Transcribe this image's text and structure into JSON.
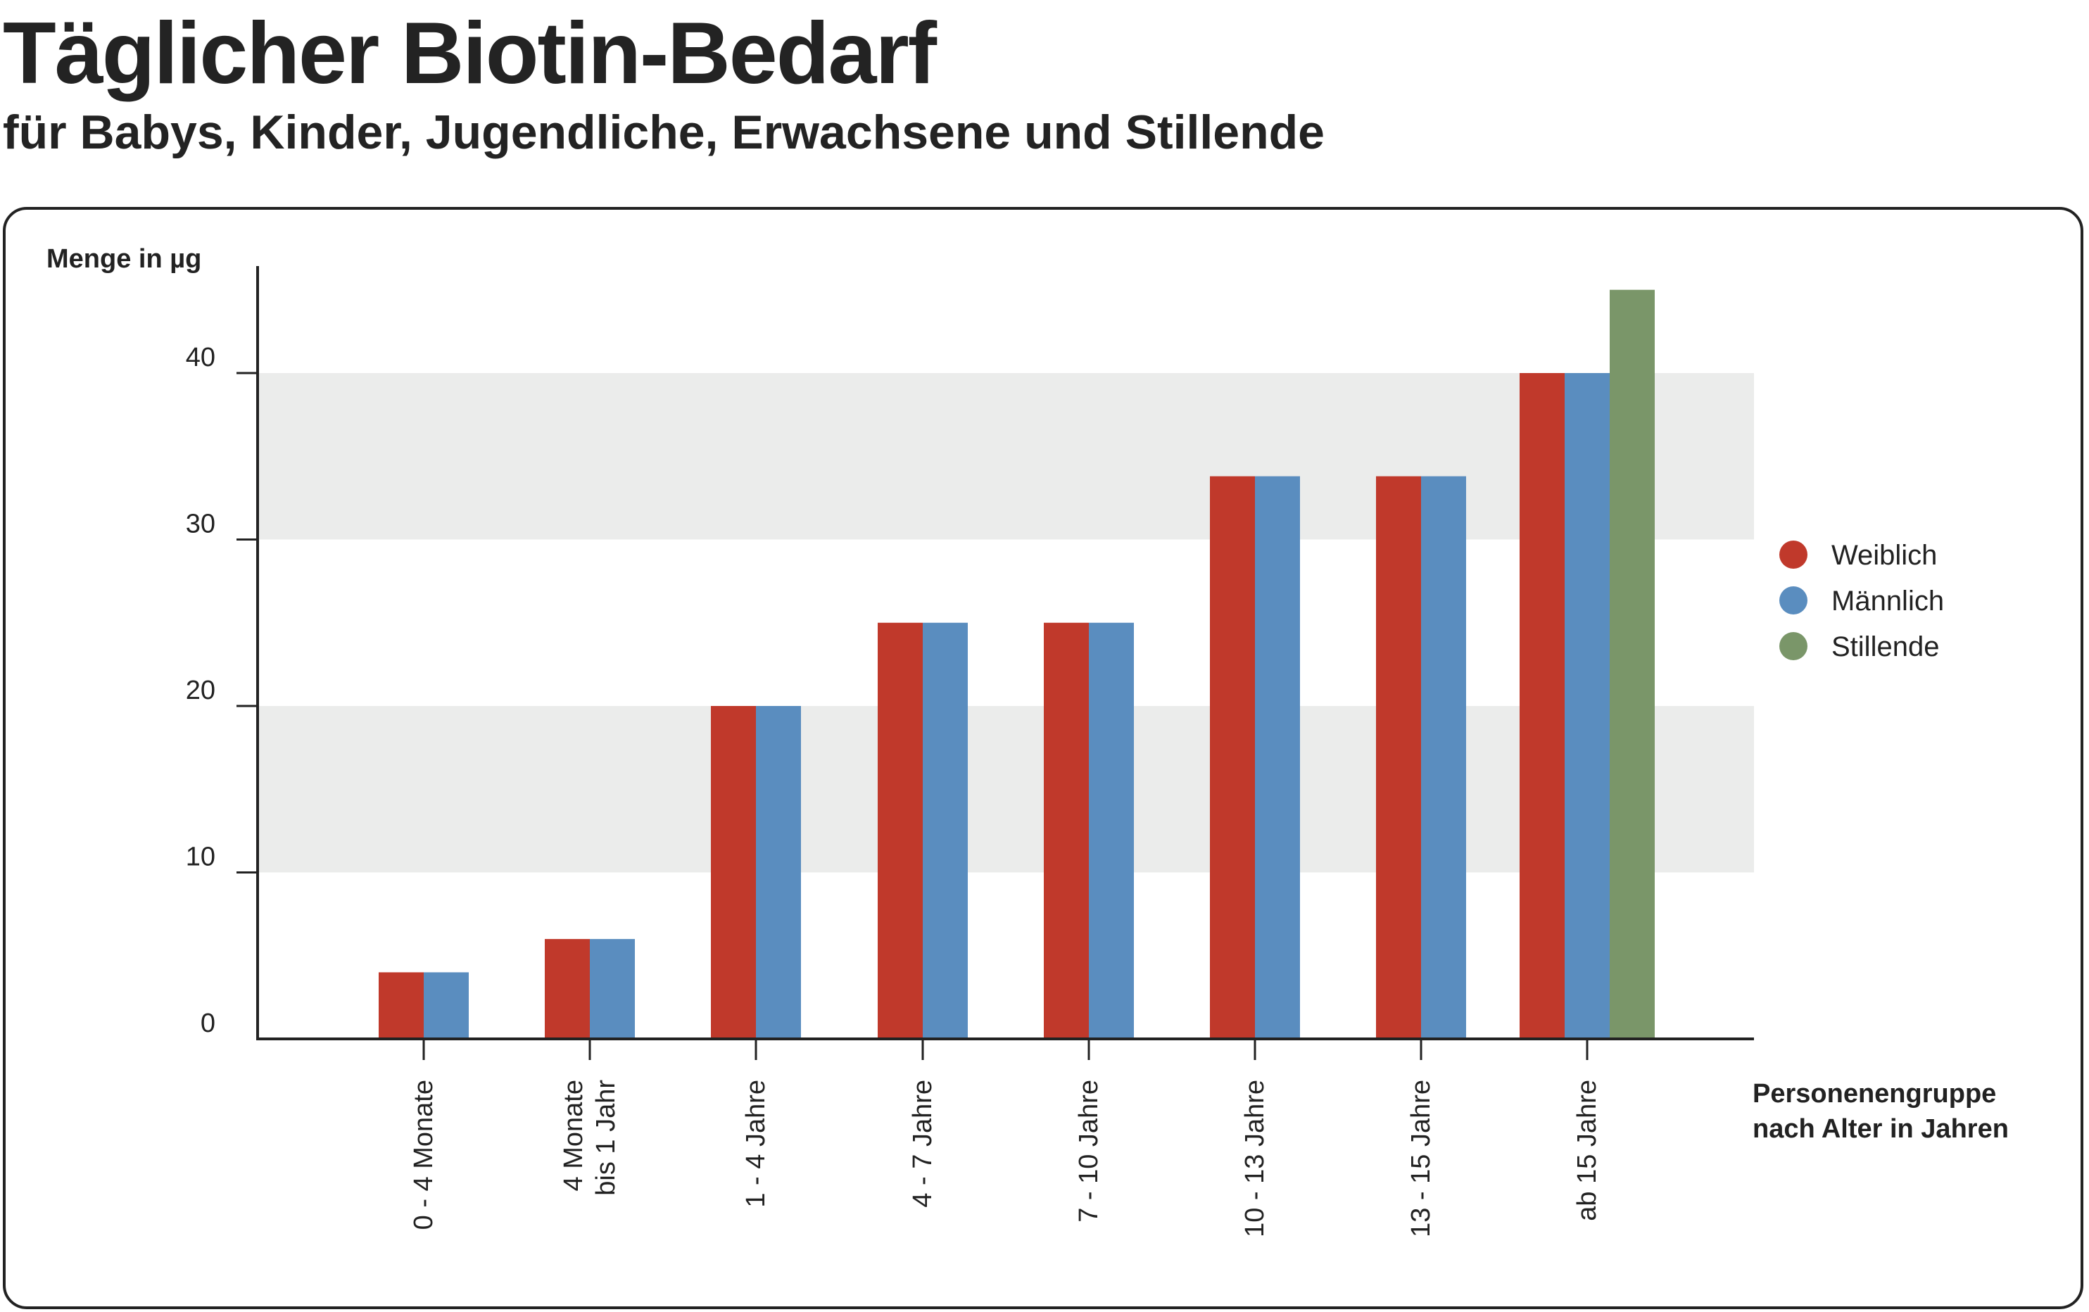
{
  "title": "Täglicher Biotin-Bedarf",
  "subtitle": "für Babys, Kinder, Jugendliche, Erwachsene und Stillende",
  "colors": {
    "weiblich": "#C0392B",
    "maennlich": "#5A8DBF",
    "stillende": "#7A9669",
    "band": "#EBECEB",
    "axis": "#222222"
  },
  "chart_data": {
    "type": "bar",
    "ylabel": "Menge in µg",
    "xlabel_lines": [
      "Personenengruppe",
      "nach Alter in Jahren"
    ],
    "ylim": [
      0,
      45
    ],
    "yticks": [
      0,
      10,
      20,
      30,
      40
    ],
    "grid": "alternating bands",
    "legend_position": "right",
    "categories": [
      [
        "0 - 4 Monate"
      ],
      [
        "4 Monate",
        "bis 1 Jahr"
      ],
      [
        "1 - 4 Jahre"
      ],
      [
        "4 - 7 Jahre"
      ],
      [
        "7 - 10 Jahre"
      ],
      [
        "10 - 13 Jahre"
      ],
      [
        "13 - 15 Jahre"
      ],
      [
        "ab 15 Jahre"
      ]
    ],
    "series": [
      {
        "name": "Weiblich",
        "color": "#C0392B",
        "values": [
          4,
          6,
          20,
          25,
          25,
          33.8,
          33.8,
          40
        ]
      },
      {
        "name": "Männlich",
        "color": "#5A8DBF",
        "values": [
          4,
          6,
          20,
          25,
          25,
          33.8,
          33.8,
          40
        ]
      },
      {
        "name": "Stillende",
        "color": "#7A9669",
        "values": [
          null,
          null,
          null,
          null,
          null,
          null,
          null,
          45
        ]
      }
    ]
  }
}
